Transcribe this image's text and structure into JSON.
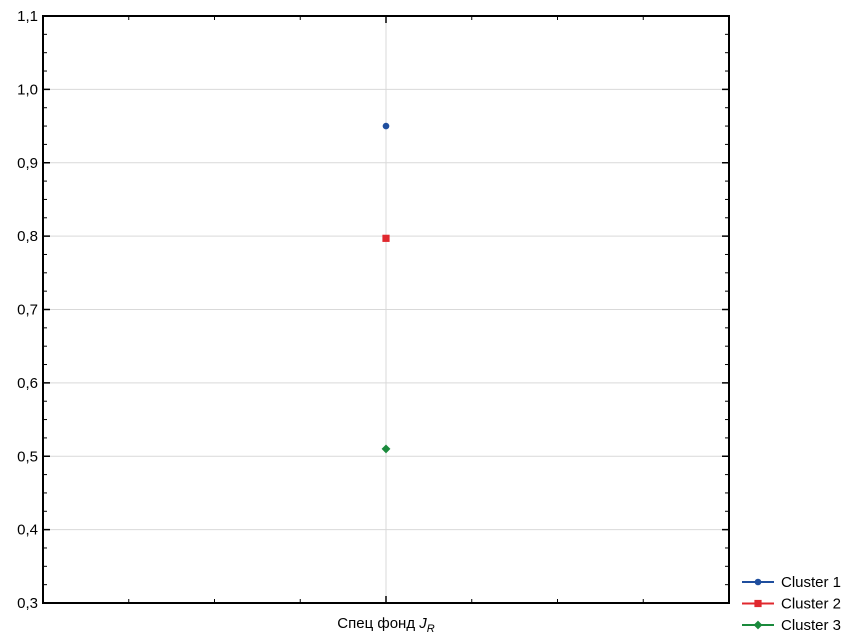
{
  "chart_data": {
    "type": "scatter",
    "categories": [
      "Спец фонд J_R"
    ],
    "xlabel": {
      "main": "Спец фонд ",
      "italic": "J",
      "sub": "R"
    },
    "ylabel": "",
    "title": "",
    "ylim": [
      0.3,
      1.1
    ],
    "yticks": [
      "0,3",
      "0,4",
      "0,5",
      "0,6",
      "0,7",
      "0,8",
      "0,9",
      "1,0",
      "1,1"
    ],
    "grid": true,
    "legend_position": "bottom-right",
    "series": [
      {
        "name": "Cluster  1",
        "values": [
          0.95
        ],
        "color": "#1f4e9e",
        "marker": "circle"
      },
      {
        "name": "Cluster  2",
        "values": [
          0.797
        ],
        "color": "#e0282e",
        "marker": "square"
      },
      {
        "name": "Cluster  3",
        "values": [
          0.51
        ],
        "color": "#1a8a3c",
        "marker": "diamond"
      }
    ]
  }
}
